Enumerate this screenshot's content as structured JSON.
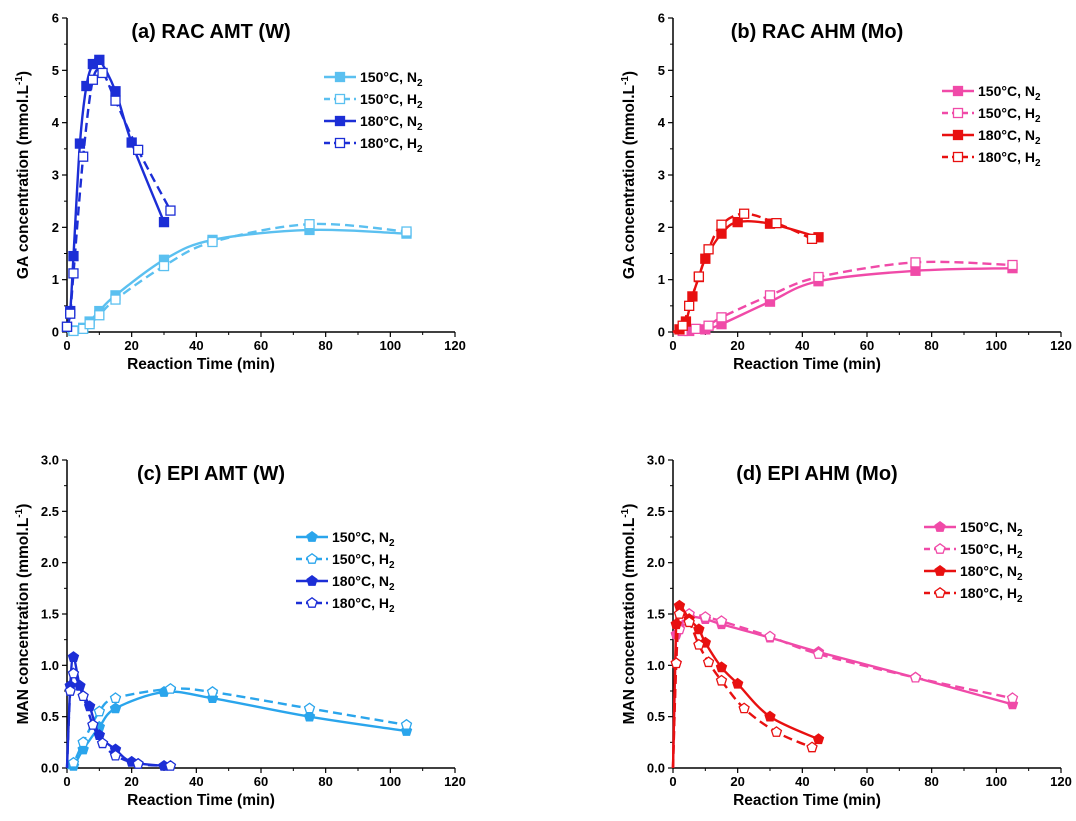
{
  "chart_data": [
    {
      "id": "a",
      "type": "line",
      "title": "(a) RAC AMT (W)",
      "xlabel": "Reaction Time (min)",
      "ylabel": "GA concentration (mmol.L",
      "ylabel_sup": "-1",
      "ylabel_close": ")",
      "xlim": [
        0,
        120
      ],
      "ylim": [
        0,
        6
      ],
      "xticks": [
        "0",
        "20",
        "40",
        "60",
        "80",
        "100",
        "120"
      ],
      "yticks": [
        "0",
        "1",
        "2",
        "3",
        "4",
        "5",
        "6"
      ],
      "legend_position": "top-right",
      "series": [
        {
          "name": "150°C, N",
          "sub": "2",
          "color": "#5bc0f0",
          "dash": false,
          "marker": "square",
          "fill": true,
          "x": [
            0,
            2,
            5,
            7,
            10,
            15,
            30,
            45,
            75,
            105
          ],
          "y": [
            0,
            0.03,
            0.08,
            0.2,
            0.4,
            0.7,
            1.38,
            1.76,
            1.95,
            1.88
          ]
        },
        {
          "name": "150°C, H",
          "sub": "2",
          "color": "#5bc0f0",
          "dash": true,
          "marker": "square",
          "fill": false,
          "x": [
            0,
            2,
            5,
            7,
            10,
            15,
            30,
            45,
            75,
            105
          ],
          "y": [
            0,
            0.02,
            0.06,
            0.15,
            0.32,
            0.62,
            1.26,
            1.72,
            2.06,
            1.92
          ]
        },
        {
          "name": "180°C, N",
          "sub": "2",
          "color": "#1c2ed6",
          "dash": false,
          "marker": "square",
          "fill": true,
          "x": [
            0,
            1,
            2,
            4,
            6,
            8,
            10,
            15,
            20,
            30
          ],
          "y": [
            0.1,
            0.4,
            1.45,
            3.6,
            4.7,
            5.12,
            5.2,
            4.6,
            3.62,
            2.1
          ]
        },
        {
          "name": "180°C, H",
          "sub": "2",
          "color": "#1c2ed6",
          "dash": true,
          "marker": "square",
          "fill": false,
          "x": [
            0,
            1,
            2,
            5,
            8,
            11,
            15,
            22,
            32
          ],
          "y": [
            0.1,
            0.35,
            1.12,
            3.35,
            4.82,
            4.95,
            4.42,
            3.48,
            2.32
          ]
        }
      ]
    },
    {
      "id": "b",
      "type": "line",
      "title": "(b) RAC AHM (Mo)",
      "xlabel": "Reaction Time (min)",
      "ylabel": "GA concentration (mmol.L",
      "ylabel_sup": "-1",
      "ylabel_close": ")",
      "xlim": [
        0,
        120
      ],
      "ylim": [
        0,
        6
      ],
      "xticks": [
        "0",
        "20",
        "40",
        "60",
        "80",
        "100",
        "120"
      ],
      "yticks": [
        "0",
        "1",
        "2",
        "3",
        "4",
        "5",
        "6"
      ],
      "legend_position": "top-right",
      "series": [
        {
          "name": "150°C, N",
          "sub": "2",
          "color": "#f04aa8",
          "dash": false,
          "marker": "square",
          "fill": true,
          "x": [
            0,
            5,
            10,
            15,
            30,
            45,
            75,
            105
          ],
          "y": [
            0,
            0.02,
            0.05,
            0.15,
            0.58,
            0.97,
            1.17,
            1.22
          ]
        },
        {
          "name": "150°C, H",
          "sub": "2",
          "color": "#f04aa8",
          "dash": true,
          "marker": "square",
          "fill": false,
          "x": [
            0,
            3,
            7,
            11,
            15,
            30,
            45,
            75,
            105
          ],
          "y": [
            0,
            0.02,
            0.06,
            0.12,
            0.28,
            0.7,
            1.05,
            1.33,
            1.28
          ]
        },
        {
          "name": "180°C, N",
          "sub": "2",
          "color": "#e81010",
          "dash": false,
          "marker": "square",
          "fill": true,
          "x": [
            0,
            2,
            4,
            6,
            8,
            10,
            15,
            20,
            30,
            45
          ],
          "y": [
            0,
            0.05,
            0.2,
            0.68,
            1.05,
            1.4,
            1.88,
            2.1,
            2.07,
            1.81
          ]
        },
        {
          "name": "180°C, H",
          "sub": "2",
          "color": "#e81010",
          "dash": true,
          "marker": "square",
          "fill": false,
          "x": [
            0,
            3,
            5,
            8,
            11,
            15,
            22,
            32,
            43
          ],
          "y": [
            0,
            0.12,
            0.5,
            1.06,
            1.58,
            2.05,
            2.26,
            2.08,
            1.78
          ]
        }
      ]
    },
    {
      "id": "c",
      "type": "line",
      "title": "(c) EPI AMT (W)",
      "xlabel": "Reaction Time (min)",
      "ylabel": "MAN concentration (mmol.L",
      "ylabel_sup": "-1",
      "ylabel_close": ")",
      "xlim": [
        0,
        120
      ],
      "ylim": [
        0,
        3
      ],
      "xticks": [
        "0",
        "20",
        "40",
        "60",
        "80",
        "100",
        "120"
      ],
      "yticks": [
        "0.0",
        "0.5",
        "1.0",
        "1.5",
        "2.0",
        "2.5",
        "3.0"
      ],
      "legend_position": "center-right",
      "series": [
        {
          "name": "150°C, N",
          "sub": "2",
          "color": "#2aa5ec",
          "dash": false,
          "marker": "pentagon",
          "fill": true,
          "x": [
            0,
            2,
            5,
            10,
            15,
            30,
            45,
            75,
            105
          ],
          "y": [
            0,
            0.02,
            0.18,
            0.4,
            0.58,
            0.74,
            0.68,
            0.5,
            0.36
          ]
        },
        {
          "name": "150°C, H",
          "sub": "2",
          "color": "#2aa5ec",
          "dash": true,
          "marker": "pentagon",
          "fill": false,
          "x": [
            0,
            2,
            5,
            10,
            15,
            32,
            45,
            75,
            105
          ],
          "y": [
            0,
            0.05,
            0.25,
            0.55,
            0.68,
            0.77,
            0.74,
            0.58,
            0.42
          ]
        },
        {
          "name": "180°C, N",
          "sub": "2",
          "color": "#1c2ed6",
          "dash": false,
          "marker": "pentagon",
          "fill": true,
          "x": [
            0,
            1,
            2,
            4,
            7,
            10,
            15,
            20,
            30
          ],
          "y": [
            0,
            0.8,
            1.08,
            0.8,
            0.6,
            0.32,
            0.18,
            0.06,
            0.02
          ]
        },
        {
          "name": "180°C, H",
          "sub": "2",
          "color": "#1c2ed6",
          "dash": true,
          "marker": "pentagon",
          "fill": false,
          "x": [
            0,
            1,
            2,
            5,
            8,
            11,
            15,
            22,
            32
          ],
          "y": [
            0,
            0.75,
            0.92,
            0.7,
            0.42,
            0.24,
            0.12,
            0.04,
            0.02
          ]
        }
      ]
    },
    {
      "id": "d",
      "type": "line",
      "title": "(d) EPI AHM (Mo)",
      "xlabel": "Reaction Time (min)",
      "ylabel": "MAN concentration (mmol.L",
      "ylabel_sup": "-1",
      "ylabel_close": ")",
      "xlim": [
        0,
        120
      ],
      "ylim": [
        0,
        3
      ],
      "xticks": [
        "0",
        "20",
        "40",
        "60",
        "80",
        "100",
        "120"
      ],
      "yticks": [
        "0.0",
        "0.5",
        "1.0",
        "1.5",
        "2.0",
        "2.5",
        "3.0"
      ],
      "legend_position": "top-right",
      "series": [
        {
          "name": "150°C, N",
          "sub": "2",
          "color": "#f04aa8",
          "dash": false,
          "marker": "pentagon",
          "fill": true,
          "x": [
            0,
            1,
            2,
            5,
            10,
            15,
            30,
            45,
            75,
            105
          ],
          "y": [
            0,
            1.3,
            1.38,
            1.47,
            1.45,
            1.4,
            1.27,
            1.13,
            0.88,
            0.62
          ]
        },
        {
          "name": "150°C, H",
          "sub": "2",
          "color": "#f04aa8",
          "dash": true,
          "marker": "pentagon",
          "fill": false,
          "x": [
            0,
            1,
            2,
            5,
            10,
            15,
            30,
            45,
            75,
            105
          ],
          "y": [
            0,
            1.02,
            1.35,
            1.5,
            1.47,
            1.43,
            1.28,
            1.11,
            0.88,
            0.68
          ]
        },
        {
          "name": "180°C, N",
          "sub": "2",
          "color": "#e81010",
          "dash": false,
          "marker": "pentagon",
          "fill": true,
          "x": [
            0,
            1,
            2,
            5,
            8,
            10,
            15,
            20,
            30,
            45
          ],
          "y": [
            0,
            1.4,
            1.58,
            1.45,
            1.35,
            1.22,
            0.98,
            0.82,
            0.5,
            0.28
          ]
        },
        {
          "name": "180°C, H",
          "sub": "2",
          "color": "#e81010",
          "dash": true,
          "marker": "pentagon",
          "fill": false,
          "x": [
            0,
            1,
            2,
            5,
            8,
            11,
            15,
            22,
            32,
            43
          ],
          "y": [
            0,
            1.02,
            1.5,
            1.42,
            1.2,
            1.03,
            0.85,
            0.58,
            0.35,
            0.2
          ]
        }
      ]
    }
  ]
}
